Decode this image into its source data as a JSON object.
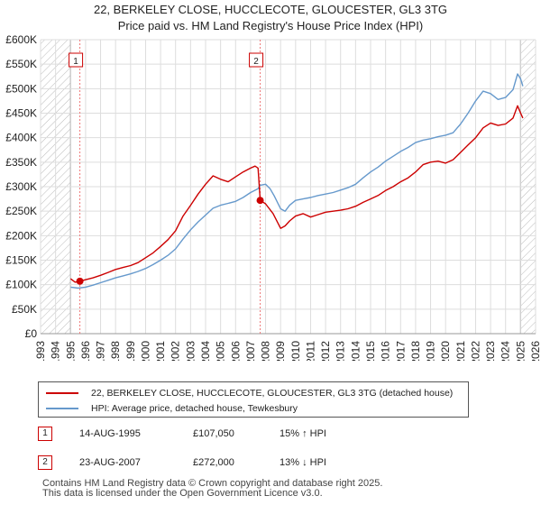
{
  "title_line1": "22, BERKELEY CLOSE, HUCCLECOTE, GLOUCESTER, GL3 3TG",
  "title_line2": "Price paid vs. HM Land Registry's House Price Index (HPI)",
  "colors": {
    "property": "#cc0000",
    "hpi": "#6699cc",
    "grid": "#dddddd",
    "hatch": "#bbbbbb",
    "marker_line": "#ee7777"
  },
  "chart_data": {
    "type": "line",
    "title": "Price paid vs. HM Land Registry's House Price Index (HPI)",
    "xlabel": "",
    "ylabel": "",
    "xlim": [
      1993,
      2026
    ],
    "ylim": [
      0,
      600000
    ],
    "grid": true,
    "y_ticks": [
      0,
      50000,
      100000,
      150000,
      200000,
      250000,
      300000,
      350000,
      400000,
      450000,
      500000,
      550000,
      600000
    ],
    "y_tick_labels": [
      "£0",
      "£50K",
      "£100K",
      "£150K",
      "£200K",
      "£250K",
      "£300K",
      "£350K",
      "£400K",
      "£450K",
      "£500K",
      "£550K",
      "£600K"
    ],
    "x_ticks": [
      1993,
      1994,
      1995,
      1996,
      1997,
      1998,
      1999,
      2000,
      2001,
      2002,
      2003,
      2004,
      2005,
      2006,
      2007,
      2008,
      2009,
      2010,
      2011,
      2012,
      2013,
      2014,
      2015,
      2016,
      2017,
      2018,
      2019,
      2020,
      2021,
      2022,
      2023,
      2024,
      2025,
      2026
    ],
    "hatched_ranges": [
      [
        1993,
        1995.0
      ],
      [
        2025.0,
        2026
      ]
    ],
    "series": [
      {
        "name": "22, BERKELEY CLOSE, HUCCLECOTE, GLOUCESTER, GL3 3TG (detached house)",
        "color": "#cc0000",
        "x": [
          1995.0,
          1995.3,
          1995.62,
          1996.0,
          1996.5,
          1997.0,
          1997.5,
          1998.0,
          1998.5,
          1999.0,
          1999.5,
          2000.0,
          2000.5,
          2001.0,
          2001.5,
          2002.0,
          2002.5,
          2003.0,
          2003.5,
          2004.0,
          2004.5,
          2005.0,
          2005.5,
          2006.0,
          2006.5,
          2007.0,
          2007.3,
          2007.5,
          2007.64,
          2008.0,
          2008.5,
          2009.0,
          2009.3,
          2009.6,
          2010.0,
          2010.5,
          2011.0,
          2011.5,
          2012.0,
          2012.5,
          2013.0,
          2013.5,
          2014.0,
          2014.5,
          2015.0,
          2015.5,
          2016.0,
          2016.5,
          2017.0,
          2017.5,
          2018.0,
          2018.5,
          2019.0,
          2019.5,
          2020.0,
          2020.5,
          2021.0,
          2021.5,
          2022.0,
          2022.5,
          2023.0,
          2023.5,
          2024.0,
          2024.5,
          2024.8,
          2025.0,
          2025.15
        ],
        "values": [
          112000,
          105000,
          107050,
          110000,
          114000,
          119000,
          125000,
          131000,
          135000,
          139000,
          145000,
          155000,
          165000,
          178000,
          192000,
          210000,
          240000,
          262000,
          285000,
          305000,
          322000,
          315000,
          310000,
          320000,
          330000,
          338000,
          342000,
          338000,
          272000,
          265000,
          245000,
          215000,
          220000,
          230000,
          240000,
          245000,
          238000,
          243000,
          248000,
          250000,
          252000,
          255000,
          260000,
          268000,
          275000,
          282000,
          292000,
          300000,
          310000,
          318000,
          330000,
          345000,
          350000,
          352000,
          348000,
          355000,
          370000,
          385000,
          400000,
          420000,
          430000,
          425000,
          428000,
          440000,
          465000,
          450000,
          440000
        ]
      },
      {
        "name": "HPI: Average price, detached house, Tewkesbury",
        "color": "#6699cc",
        "x": [
          1995.0,
          1995.5,
          1996.0,
          1996.5,
          1997.0,
          1997.5,
          1998.0,
          1998.5,
          1999.0,
          1999.5,
          2000.0,
          2000.5,
          2001.0,
          2001.5,
          2002.0,
          2002.5,
          2003.0,
          2003.5,
          2004.0,
          2004.5,
          2005.0,
          2005.5,
          2006.0,
          2006.5,
          2007.0,
          2007.5,
          2007.64,
          2008.0,
          2008.3,
          2008.6,
          2009.0,
          2009.3,
          2009.6,
          2010.0,
          2010.5,
          2011.0,
          2011.5,
          2012.0,
          2012.5,
          2013.0,
          2013.5,
          2014.0,
          2014.5,
          2015.0,
          2015.5,
          2016.0,
          2016.5,
          2017.0,
          2017.5,
          2018.0,
          2018.5,
          2019.0,
          2019.5,
          2020.0,
          2020.5,
          2021.0,
          2021.5,
          2022.0,
          2022.5,
          2023.0,
          2023.5,
          2024.0,
          2024.5,
          2024.8,
          2025.0,
          2025.15
        ],
        "values": [
          95000,
          93000,
          95000,
          99000,
          104000,
          109000,
          114000,
          118000,
          122000,
          127000,
          133000,
          141000,
          150000,
          160000,
          173000,
          193000,
          212000,
          228000,
          242000,
          256000,
          262000,
          266000,
          270000,
          278000,
          288000,
          296000,
          303000,
          305000,
          296000,
          280000,
          255000,
          250000,
          262000,
          272000,
          275000,
          278000,
          282000,
          285000,
          288000,
          293000,
          298000,
          305000,
          318000,
          330000,
          340000,
          352000,
          362000,
          372000,
          380000,
          390000,
          395000,
          398000,
          402000,
          405000,
          410000,
          428000,
          450000,
          475000,
          495000,
          490000,
          478000,
          482000,
          498000,
          530000,
          520000,
          505000
        ]
      }
    ],
    "annotations": [
      {
        "label": "1",
        "x": 1995.62,
        "y": 107050
      },
      {
        "label": "2",
        "x": 2007.64,
        "y": 272000
      }
    ]
  },
  "legend": {
    "property_label": "22, BERKELEY CLOSE, HUCCLECOTE, GLOUCESTER, GL3 3TG (detached house)",
    "hpi_label": "HPI: Average price, detached house, Tewkesbury"
  },
  "transactions": [
    {
      "num": "1",
      "date": "14-AUG-1995",
      "price": "£107,050",
      "hpi": "15% ↑ HPI"
    },
    {
      "num": "2",
      "date": "23-AUG-2007",
      "price": "£272,000",
      "hpi": "13% ↓ HPI"
    }
  ],
  "footer": {
    "line1": "Contains HM Land Registry data © Crown copyright and database right 2025.",
    "line2": "This data is licensed under the Open Government Licence v3.0."
  }
}
